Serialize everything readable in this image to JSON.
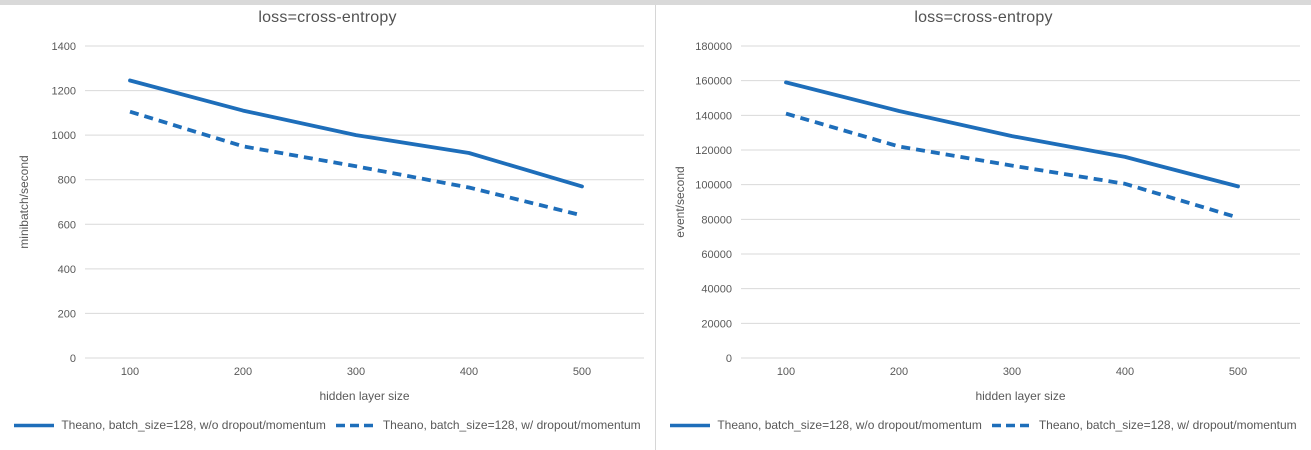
{
  "colors": {
    "line_blue": "#1e6eba",
    "gridline": "#d9d9d9",
    "axis_text": "#595959"
  },
  "chart_data": [
    {
      "type": "line",
      "title": "loss=cross-entropy",
      "xlabel": "hidden layer size",
      "ylabel": "minibatch/second",
      "categories": [
        100,
        200,
        300,
        400,
        500
      ],
      "ylim": [
        0,
        1400
      ],
      "ytick_step": 200,
      "grid": true,
      "legend_position": "bottom",
      "accent_color": "#1e6eba",
      "series": [
        {
          "name": "Theano, batch_size=128, w/o dropout/momentum",
          "style": "solid",
          "values": [
            1245,
            1110,
            1000,
            920,
            770
          ]
        },
        {
          "name": "Theano, batch_size=128, w/ dropout/momentum",
          "style": "dashed",
          "values": [
            1105,
            950,
            860,
            765,
            640
          ]
        }
      ]
    },
    {
      "type": "line",
      "title": "loss=cross-entropy",
      "xlabel": "hidden layer size",
      "ylabel": "event/second",
      "categories": [
        100,
        200,
        300,
        400,
        500
      ],
      "ylim": [
        0,
        180000
      ],
      "ytick_step": 20000,
      "grid": true,
      "legend_position": "bottom",
      "accent_color": "#1e6eba",
      "series": [
        {
          "name": "Theano, batch_size=128, w/o dropout/momentum",
          "style": "solid",
          "values": [
            159000,
            142500,
            128000,
            116000,
            99000
          ]
        },
        {
          "name": "Theano, batch_size=128, w/ dropout/momentum",
          "style": "dashed",
          "values": [
            141000,
            122000,
            111000,
            100500,
            81000
          ]
        }
      ]
    }
  ]
}
